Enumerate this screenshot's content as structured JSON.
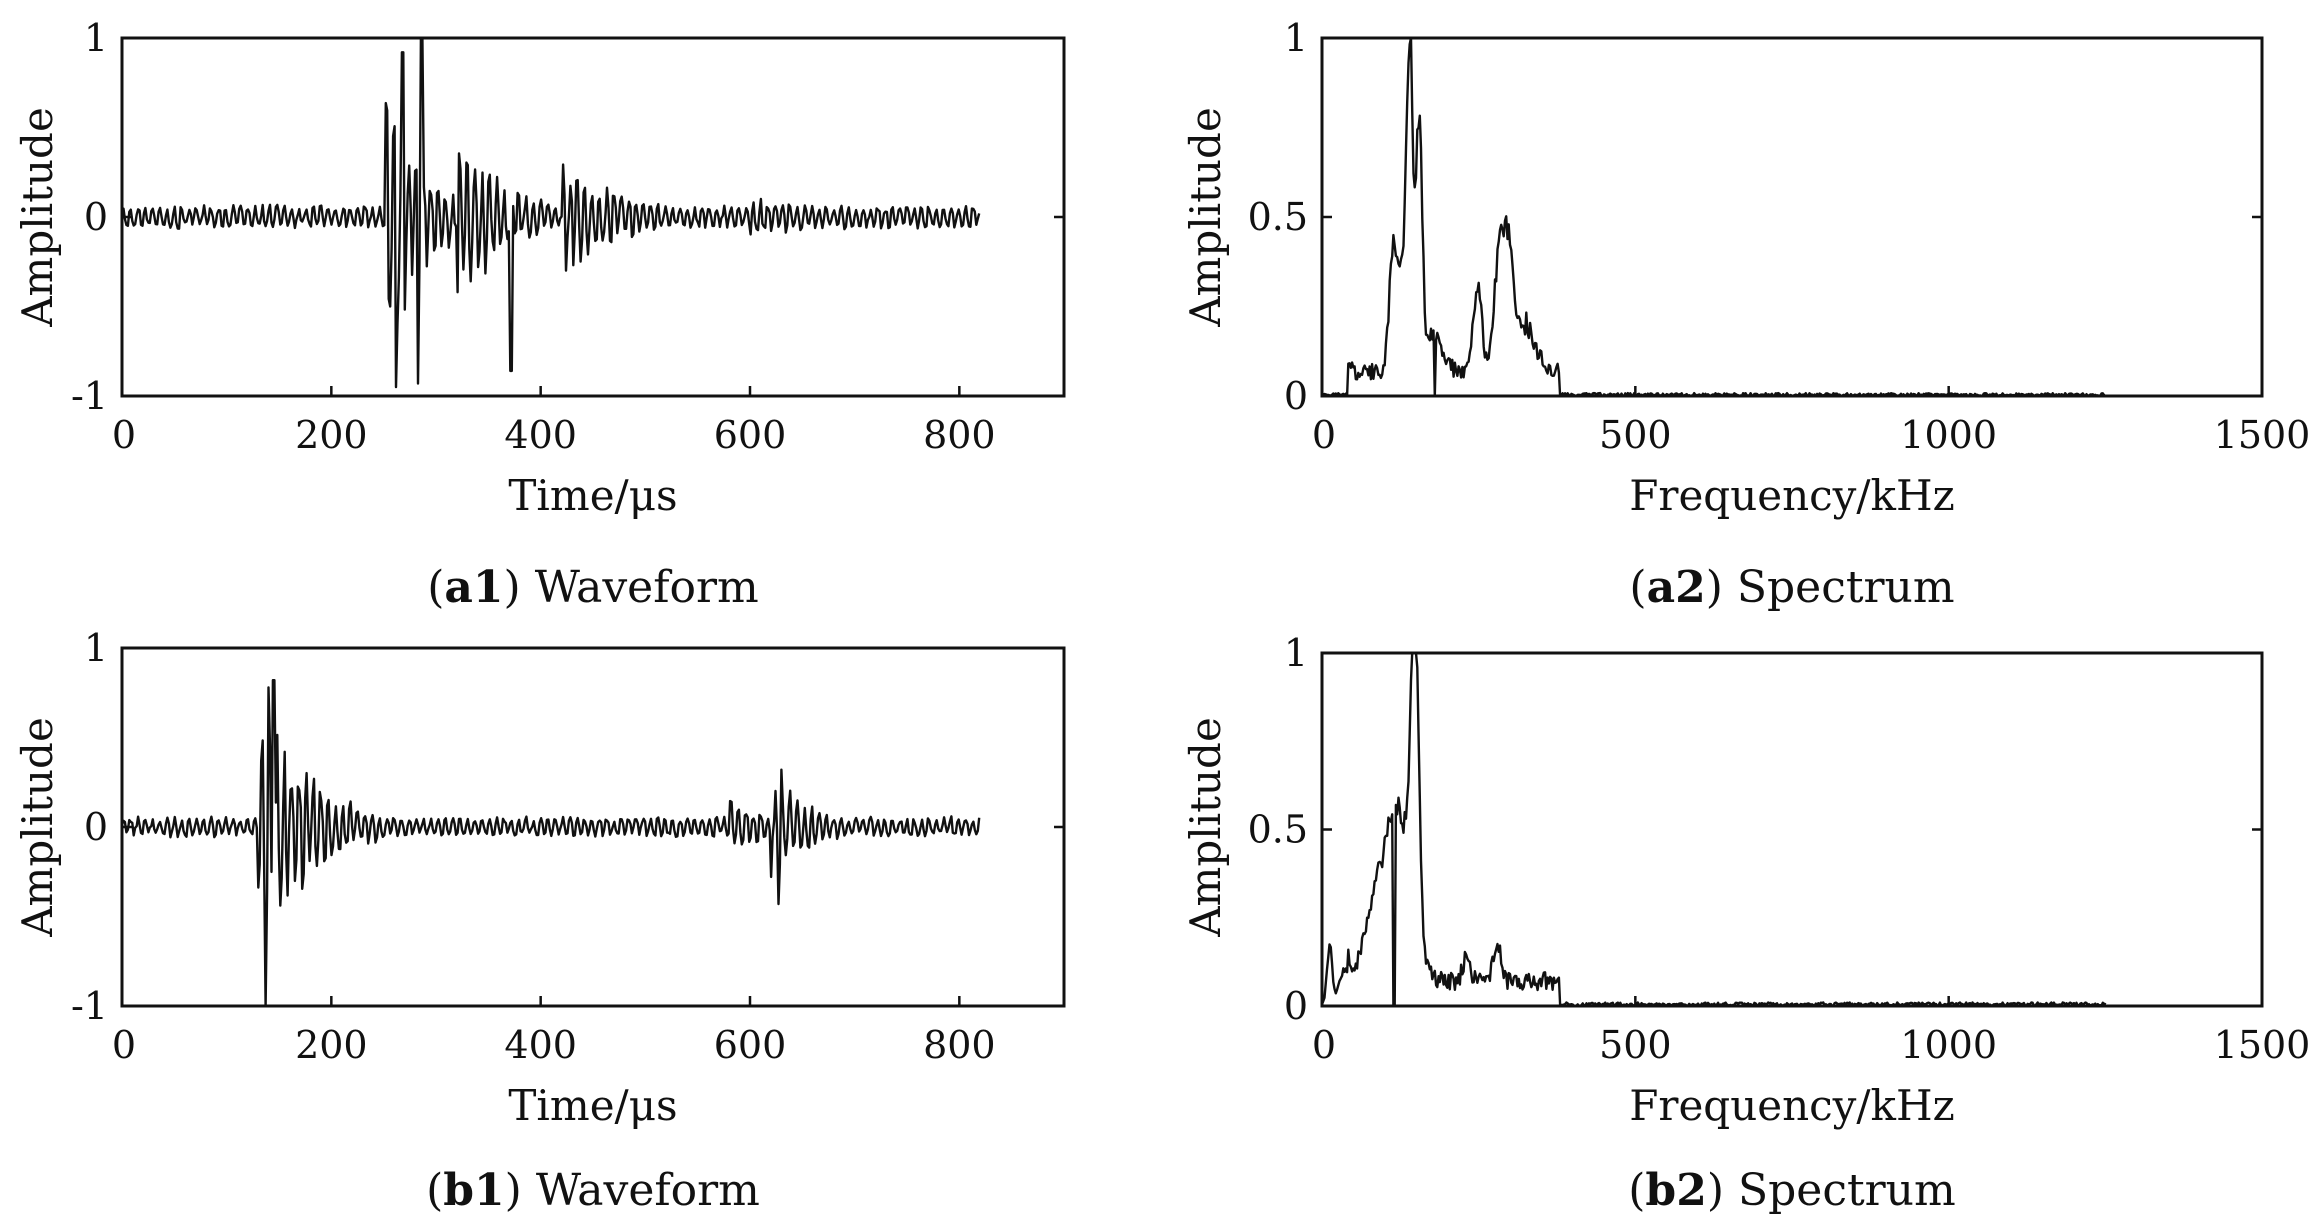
{
  "chart_data": [
    {
      "id": "a1",
      "type": "line",
      "caption_label": "a1",
      "caption_text": "Waveform",
      "xlabel": "Time/μs",
      "ylabel": "Amplitude",
      "xlim": [
        0,
        900
      ],
      "ylim": [
        -1,
        1
      ],
      "xticks": [
        "0",
        "200",
        "400",
        "600",
        "800"
      ],
      "yticks": [
        "-1",
        "0",
        "1"
      ],
      "signal": {
        "duration": 820,
        "noise_level": 0.07,
        "bursts": [
          {
            "t0": 252,
            "peak": 1.0,
            "tau": 35
          },
          {
            "t0": 320,
            "peak": 0.6,
            "tau": 45
          },
          {
            "t0": 420,
            "peak": 0.35,
            "tau": 60
          },
          {
            "t0": 600,
            "peak": 0.12,
            "tau": 120
          }
        ],
        "spikes": [
          {
            "t": 262,
            "value": -0.95
          },
          {
            "t": 268,
            "value": 0.92
          },
          {
            "t": 286,
            "value": 1.0
          },
          {
            "t": 283,
            "value": -0.93
          },
          {
            "t": 372,
            "value": -0.86
          },
          {
            "t": 256,
            "value": -0.5
          }
        ]
      }
    },
    {
      "id": "a2",
      "type": "line",
      "caption_label": "a2",
      "caption_text": "Spectrum",
      "xlabel": "Frequency/kHz",
      "ylabel": "Amplitude",
      "xlim": [
        0,
        1500
      ],
      "ylim": [
        0,
        1
      ],
      "xticks": [
        "0",
        "500",
        "1000",
        "1500"
      ],
      "yticks": [
        "0",
        "0.5",
        "1"
      ],
      "signal": {
        "max_freq": 1250,
        "noise_level": 0.008,
        "peaks": [
          {
            "f": 140,
            "amp": 1.0,
            "width": 5
          },
          {
            "f": 155,
            "amp": 0.76,
            "width": 5
          },
          {
            "f": 125,
            "amp": 0.3,
            "width": 8
          },
          {
            "f": 112,
            "amp": 0.28,
            "width": 6
          },
          {
            "f": 248,
            "amp": 0.26,
            "width": 7
          },
          {
            "f": 283,
            "amp": 0.35,
            "width": 8
          },
          {
            "f": 298,
            "amp": 0.3,
            "width": 7
          },
          {
            "f": 180,
            "amp": 0.12,
            "width": 12
          },
          {
            "f": 320,
            "amp": 0.15,
            "width": 18
          }
        ],
        "dip": {
          "f": 180,
          "value": 0.0
        }
      }
    },
    {
      "id": "b1",
      "type": "line",
      "caption_label": "b1",
      "caption_text": "Waveform",
      "xlabel": "Time/μs",
      "ylabel": "Amplitude",
      "xlim": [
        0,
        900
      ],
      "ylim": [
        -1,
        1
      ],
      "xticks": [
        "0",
        "200",
        "400",
        "600",
        "800"
      ],
      "yticks": [
        "-1",
        "0",
        "1"
      ],
      "signal": {
        "duration": 820,
        "noise_level": 0.06,
        "bursts": [
          {
            "t0": 130,
            "peak": 0.85,
            "tau": 50
          },
          {
            "t0": 580,
            "peak": 0.18,
            "tau": 40
          },
          {
            "t0": 620,
            "peak": 0.3,
            "tau": 50
          }
        ],
        "spikes": [
          {
            "t": 137,
            "value": -1.0
          },
          {
            "t": 140,
            "value": 0.78
          },
          {
            "t": 145,
            "value": 0.82
          },
          {
            "t": 627,
            "value": -0.43
          },
          {
            "t": 630,
            "value": 0.32
          }
        ]
      }
    },
    {
      "id": "b2",
      "type": "line",
      "caption_label": "b2",
      "caption_text": "Spectrum",
      "xlabel": "Frequency/kHz",
      "ylabel": "Amplitude",
      "xlim": [
        0,
        1500
      ],
      "ylim": [
        0,
        1
      ],
      "xticks": [
        "0",
        "500",
        "1000",
        "1500"
      ],
      "yticks": [
        "0",
        "0.5",
        "1"
      ],
      "signal": {
        "max_freq": 1250,
        "noise_level": 0.01,
        "peaks": [
          {
            "f": 148,
            "amp": 1.0,
            "width": 6
          },
          {
            "f": 125,
            "amp": 0.45,
            "width": 20
          },
          {
            "f": 90,
            "amp": 0.25,
            "width": 20
          },
          {
            "f": 12,
            "amp": 0.18,
            "width": 4
          },
          {
            "f": 35,
            "amp": 0.1,
            "width": 8
          },
          {
            "f": 280,
            "amp": 0.12,
            "width": 6
          },
          {
            "f": 230,
            "amp": 0.07,
            "width": 6
          }
        ],
        "dip": {
          "f": 115,
          "value": 0.0
        }
      }
    }
  ]
}
